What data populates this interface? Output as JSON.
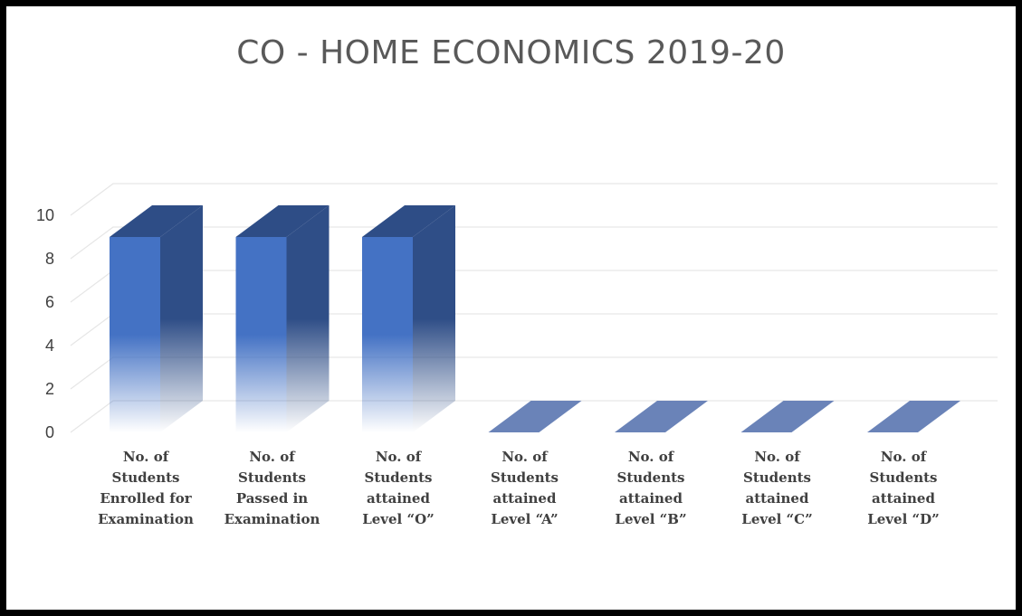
{
  "chart_data": {
    "type": "bar",
    "title": "CO - HOME ECONOMICS 2019-20",
    "categories": [
      "No. of\nStudents\nEnrolled for\nExamination",
      "No. of\nStudents\nPassed in\nExamination",
      "No. of\nStudents\nattained\nLevel “O”",
      "No. of\nStudents\nattained\nLevel “A”",
      "No. of\nStudents\nattained\nLevel “B”",
      "No. of\nStudents\nattained\nLevel “C”",
      "No. of\nStudents\nattained\nLevel “D”"
    ],
    "values": [
      9,
      9,
      9,
      0,
      0,
      0,
      0
    ],
    "yticks": [
      "0",
      "2",
      "4",
      "6",
      "8",
      "10"
    ],
    "ylim": [
      0,
      10
    ],
    "xlabel": "",
    "ylabel": "",
    "grid": true,
    "legend": "none",
    "colors": {
      "bar_front": "#4472c4",
      "bar_side": "#2f4e87",
      "bar_top": "#2e4d86",
      "zero_bar": "#6a83b8",
      "grid": "#e6e6e6",
      "axis_text": "#404040",
      "title": "#595959"
    }
  }
}
